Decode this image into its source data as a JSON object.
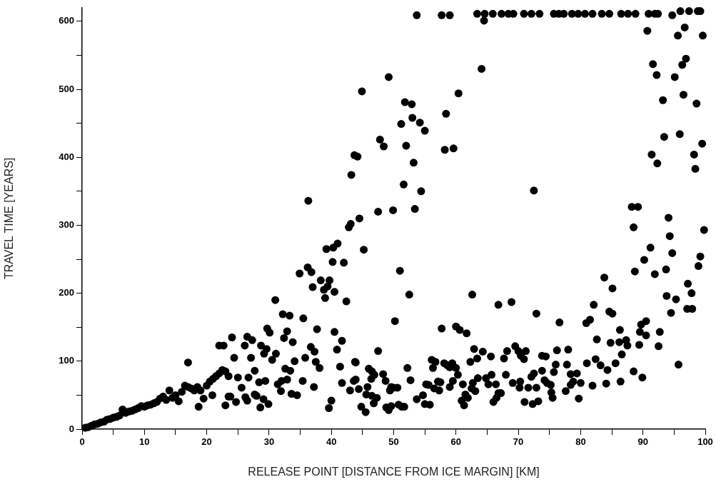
{
  "chart_data": {
    "type": "scatter",
    "xlabel": "RELEASE POINT [DISTANCE FROM ICE MARGIN] [KM]",
    "ylabel": "TRAVEL TIME [YEARS]",
    "color": "#000000",
    "marker": "circle",
    "xlim": [
      0,
      100
    ],
    "ylim": [
      0,
      620
    ],
    "xticks": [
      0,
      {
        "value": 5,
        "label": null
      },
      10,
      {
        "value": 15,
        "label": null
      },
      20,
      {
        "value": 25,
        "label": null
      },
      30,
      {
        "value": 35,
        "label": null
      },
      40,
      {
        "value": 45,
        "label": null
      },
      50,
      {
        "value": 55,
        "label": null
      },
      60,
      {
        "value": 65,
        "label": null
      },
      70,
      {
        "value": 75,
        "label": null
      },
      80,
      {
        "value": 85,
        "label": null
      },
      90,
      {
        "value": 95,
        "label": null
      },
      100
    ],
    "yticks": [
      0,
      {
        "value": 50,
        "label": null
      },
      100,
      {
        "value": 150,
        "label": null
      },
      200,
      {
        "value": 250,
        "label": null
      },
      300,
      {
        "value": 350,
        "label": null
      },
      400,
      {
        "value": 450,
        "label": null
      },
      500,
      {
        "value": 550,
        "label": null
      },
      600
    ],
    "x": [
      0.5,
      1,
      1.5,
      2,
      2.5,
      3,
      3.5,
      4,
      4.5,
      5,
      5.5,
      6,
      6.5,
      7,
      7.5,
      8,
      8.5,
      9,
      9.5,
      10,
      10.5,
      11,
      11.5,
      12,
      12.5,
      13,
      13.5,
      14,
      14.5,
      15,
      15.5,
      16,
      16.5,
      17,
      17.5,
      18,
      18.5,
      19,
      20,
      20.5,
      21,
      21.5,
      22,
      22.5,
      23,
      23.5,
      17,
      18.7,
      19.5,
      20.9,
      22,
      22.7,
      23,
      23.5,
      24.05,
      24.4,
      25,
      23.8,
      24.7,
      25.6,
      26.1,
      26.7,
      26.2,
      26.5,
      26.5,
      27.3,
      27.1,
      27.7,
      27.7,
      28,
      28.4,
      28.6,
      29.1,
      29.4,
      28.7,
      29.2,
      29.6,
      29.7,
      30.1,
      29.9,
      30.5,
      31.1,
      31,
      31.4,
      32,
      31.9,
      32.2,
      33.3,
      32.4,
      32.9,
      32.6,
      33.4,
      32.9,
      33.8,
      33.6,
      34.5,
      34.1,
      34.9,
      35.5,
      35.8,
      35.4,
      36.2,
      36.8,
      36.7,
      37.3,
      37.5,
      37.2,
      37.7,
      38.1,
      37,
      38.3,
      38.8,
      39,
      39.7,
      39.4,
      40.5,
      39.6,
      40,
      40.5,
      40.9,
      41.4,
      41.7,
      41.7,
      43,
      43.6,
      43.8,
      39.2,
      40.3,
      41,
      40.2,
      42,
      42.4,
      36.3,
      43.2,
      42.8,
      43.1,
      43.7,
      53.7,
      57.7,
      59,
      63.4,
      64.6,
      65.9,
      67.3,
      68.4,
      69.2,
      70.9,
      72.1,
      73.4,
      75.7,
      76.5,
      77.3,
      78.6,
      79.6,
      80.7,
      81.9,
      83.4,
      84.6,
      86.5,
      87.6,
      88.8,
      90.9,
      91.9,
      92.4,
      94.7,
      96,
      97.4,
      98.8,
      99.2,
      64.5,
      64.1,
      90.7,
      96.7,
      95.6,
      99.6,
      91.6,
      96.9,
      96.3,
      92.2,
      95.1,
      93.2,
      96.5,
      98.6,
      93.4,
      95.9,
      99.5,
      91.4,
      98.2,
      92.3,
      98.4,
      88.2,
      89.2,
      94.1,
      88.5,
      94.3,
      99.8,
      49.2,
      44.9,
      60.4,
      51.8,
      52.9,
      53,
      54.2,
      51.2,
      55,
      58.4,
      47.8,
      48.4,
      52,
      58.2,
      59.6,
      44.2,
      53.2,
      51.6,
      54.4,
      72.5,
      44.5,
      47.5,
      49.9,
      53.4,
      45.2,
      51,
      52.5,
      50.2,
      62.6,
      66.8,
      68.9,
      72.9,
      76.6,
      83.8,
      85.1,
      82.1,
      88.7,
      90.2,
      91.2,
      91.9,
      93.7,
      94.7,
      99.2,
      98.9,
      97.2,
      97.8,
      93.8,
      95.3,
      94.5,
      97.1,
      97.9,
      95.7,
      84.6,
      85.1,
      80.9,
      81.5,
      89.7,
      90.5,
      89.5,
      90.5,
      92.7,
      92.5,
      89.4,
      86.3,
      82.6,
      84.8,
      86.2,
      87.3,
      87.5,
      86.6,
      85.6,
      82.4,
      83.2,
      81,
      84.3,
      88.5,
      89.9,
      81.9,
      84.1,
      86.4,
      76.2,
      78,
      77.8,
      76,
      73.8,
      74.4,
      73.8,
      75.7,
      78.4,
      79.4,
      74.2,
      74.6,
      75.2,
      75.3,
      75.5,
      77.6,
      78.4,
      78.8,
      80,
      79.7,
      69.5,
      70,
      70.4,
      70.9,
      71.2,
      68.2,
      67.7,
      68,
      69.1,
      70.3,
      70.2,
      71.6,
      72.9,
      72.1,
      72.5,
      71,
      72.3,
      73.2,
      62.9,
      63.4,
      62.3,
      64.3,
      65.6,
      63.5,
      64.8,
      65.2,
      65.7,
      66.4,
      66.8,
      67.2,
      66,
      66.5,
      62.7,
      62.5,
      63.1,
      61.5,
      61.9,
      60.9,
      61.3,
      61.1,
      60,
      60.6,
      61.7,
      57.7,
      56.1,
      56.7,
      56.3,
      58.1,
      58.6,
      59,
      59.4,
      60,
      60.3,
      59.5,
      59,
      57.1,
      57.5,
      57.3,
      56.5,
      55.2,
      55.6,
      53.7,
      54.7,
      55,
      55.8,
      52.2,
      52.7,
      47.5,
      46,
      46.5,
      46.4,
      46.9,
      48.3,
      48.7,
      43.9,
      43.9,
      44.4,
      45.8,
      45.6,
      46.5,
      47.3,
      46.8,
      44.8,
      45.5,
      49.6,
      50,
      50.6,
      49.4,
      48.8,
      49.2,
      49.6,
      50.8,
      51.3,
      51.7
    ],
    "values": [
      2,
      3,
      5,
      7,
      8,
      10,
      11,
      14,
      15,
      17,
      18,
      20,
      29,
      24,
      26,
      27,
      29,
      31,
      34,
      33,
      35,
      36,
      38,
      40,
      45,
      48,
      43,
      57,
      46,
      50,
      41,
      55,
      64,
      62,
      60,
      57,
      62,
      57,
      64,
      70,
      74,
      78,
      82,
      87,
      85,
      78,
      98,
      33,
      45,
      50,
      123,
      123,
      35,
      48,
      135,
      105,
      76,
      48,
      40,
      61,
      123,
      76,
      47,
      42,
      136,
      131,
      105,
      86,
      51,
      49,
      69,
      32,
      44,
      71,
      123,
      111,
      118,
      148,
      142,
      37,
      102,
      111,
      190,
      66,
      71,
      56,
      169,
      167,
      134,
      144,
      89,
      86,
      73,
      128,
      52,
      50,
      100,
      229,
      163,
      105,
      71,
      238,
      231,
      121,
      114,
      99,
      62,
      147,
      90,
      209,
      219,
      205,
      193,
      219,
      210,
      202,
      31,
      42,
      143,
      117,
      92,
      68,
      130,
      57,
      71,
      99,
      265,
      267,
      273,
      246,
      245,
      188,
      336,
      374,
      297,
      302,
      403,
      609,
      609,
      609,
      611,
      611,
      611,
      611,
      611,
      611,
      611,
      611,
      611,
      611,
      611,
      611,
      611,
      611,
      611,
      611,
      611,
      611,
      611,
      611,
      611,
      611,
      611,
      611,
      609,
      615,
      615,
      615,
      615,
      601,
      530,
      586,
      591,
      579,
      579,
      537,
      545,
      536,
      521,
      518,
      484,
      492,
      479,
      430,
      434,
      420,
      404,
      404,
      391,
      383,
      327,
      327,
      311,
      297,
      284,
      293,
      518,
      497,
      494,
      481,
      478,
      458,
      451,
      449,
      439,
      464,
      426,
      416,
      417,
      411,
      413,
      401,
      392,
      360,
      350,
      351,
      310,
      320,
      322,
      324,
      264,
      233,
      198,
      159,
      198,
      183,
      187,
      170,
      157,
      223,
      207,
      183,
      232,
      249,
      267,
      228,
      235,
      259,
      254,
      240,
      214,
      200,
      196,
      191,
      171,
      177,
      177,
      95,
      173,
      170,
      156,
      161,
      154,
      159,
      143,
      138,
      143,
      122,
      124,
      146,
      132,
      127,
      128,
      131,
      123,
      110,
      97,
      103,
      94,
      97,
      87,
      85,
      76,
      64,
      67,
      70,
      116,
      117,
      95,
      95,
      108,
      107,
      86,
      84,
      81,
      82,
      72,
      68,
      65,
      54,
      46,
      56,
      65,
      70,
      68,
      45,
      122,
      115,
      108,
      103,
      115,
      115,
      104,
      80,
      68,
      70,
      61,
      61,
      61,
      77,
      82,
      40,
      37,
      41,
      118,
      104,
      99,
      114,
      107,
      75,
      75,
      66,
      80,
      66,
      53,
      53,
      40,
      46,
      68,
      60,
      56,
      51,
      46,
      42,
      35,
      66,
      151,
      146,
      141,
      148,
      102,
      99,
      90,
      97,
      94,
      91,
      97,
      90,
      80,
      71,
      62,
      70,
      69,
      57,
      60,
      66,
      65,
      44,
      50,
      37,
      36,
      90,
      72,
      115,
      89,
      85,
      74,
      80,
      81,
      71,
      98,
      73,
      59,
      62,
      51,
      49,
      46,
      38,
      33,
      25,
      62,
      61,
      61,
      57,
      32,
      28,
      34,
      36,
      33,
      33
    ]
  }
}
